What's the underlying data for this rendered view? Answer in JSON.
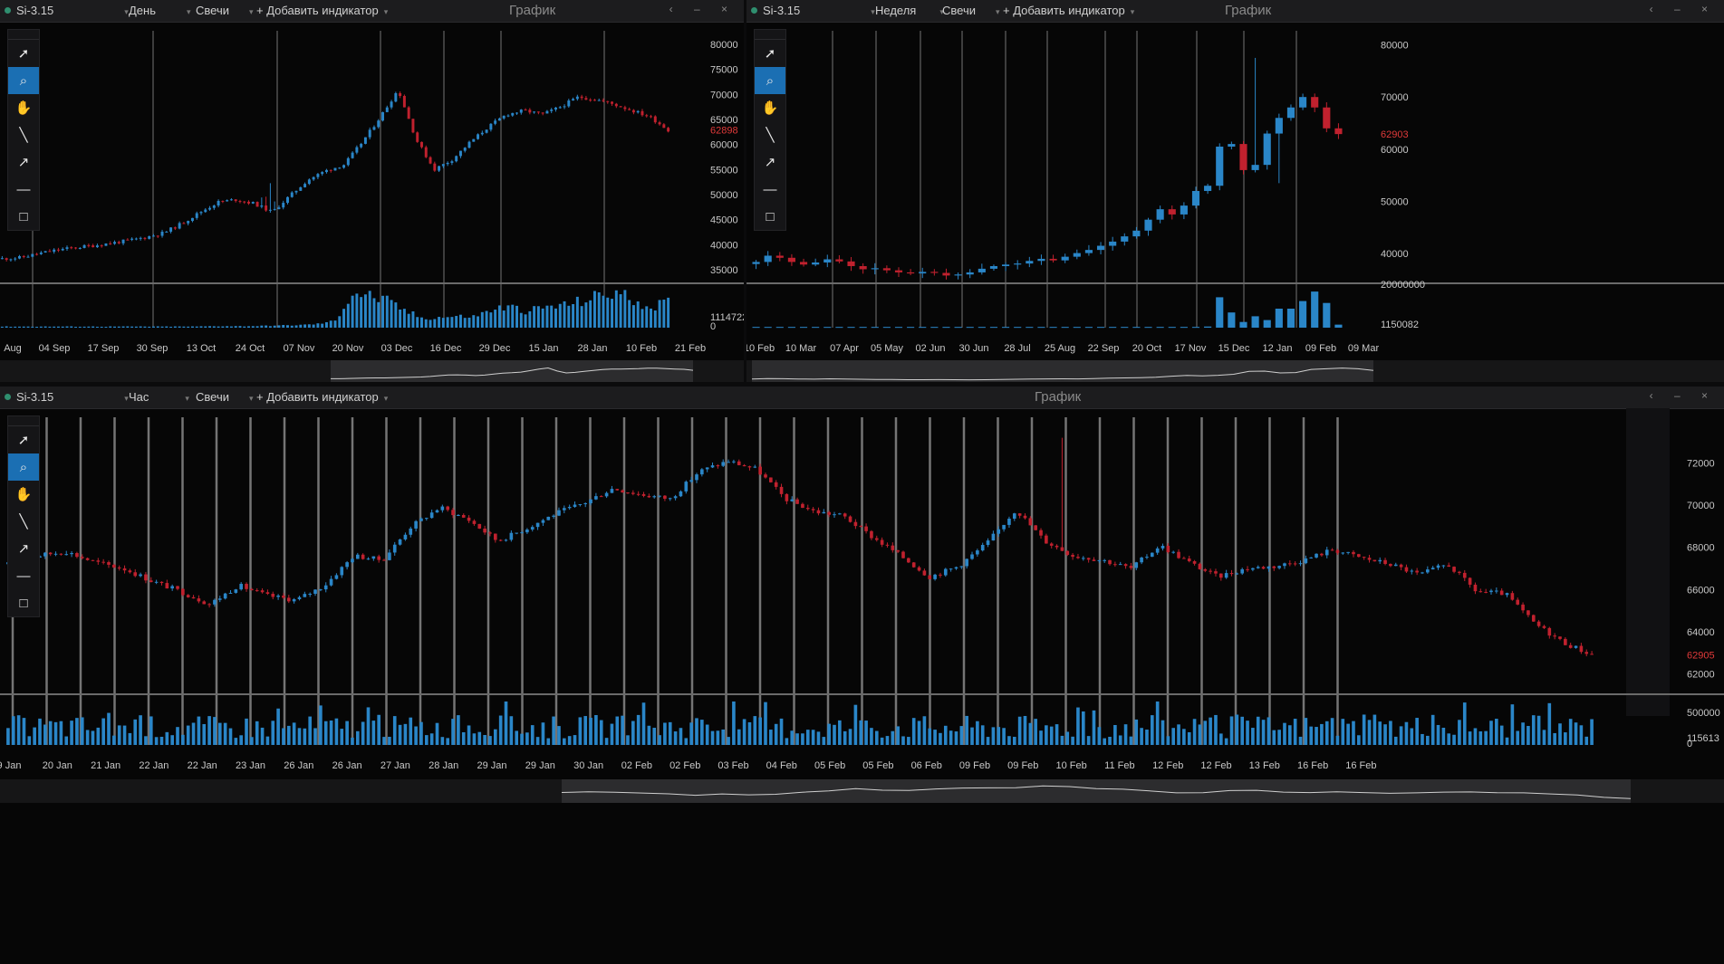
{
  "colors": {
    "up": "#2a86c8",
    "down": "#c0212e",
    "grid": "#9a9a9a",
    "axis_text": "#c8c8c8",
    "price_marker": "#e03a3a",
    "volume": "#2a86c8"
  },
  "toolbar": {
    "tools": [
      "cursor-icon",
      "zoom-icon",
      "hand-icon",
      "line-icon",
      "arrow-icon",
      "hline-icon",
      "rect-icon"
    ]
  },
  "panels": [
    {
      "symbol": "Si-3.15",
      "timeframe": "День",
      "chart_type": "Свечи",
      "add_indicator": "+ Добавить индикатор",
      "window_title": "График",
      "controls": "‹ – ×"
    },
    {
      "symbol": "Si-3.15",
      "timeframe": "Неделя",
      "chart_type": "Свечи",
      "add_indicator": "+ Добавить индикатор",
      "window_title": "График",
      "controls": "‹ – ×"
    },
    {
      "symbol": "Si-3.15",
      "timeframe": "Час",
      "chart_type": "Свечи",
      "add_indicator": "+ Добавить индикатор",
      "window_title": "График",
      "controls": "‹ – ×"
    }
  ],
  "chart_data": [
    {
      "type": "candlestick",
      "title": "Si-3.15 — День",
      "x_ticks": [
        "Aug",
        "04 Sep",
        "17 Sep",
        "30 Sep",
        "13 Oct",
        "24 Oct",
        "07 Nov",
        "20 Nov",
        "03 Dec",
        "16 Dec",
        "29 Dec",
        "15 Jan",
        "28 Jan",
        "10 Feb",
        "21 Feb"
      ],
      "ylim": [
        33000,
        82000
      ],
      "y_ticks": [
        35000,
        40000,
        45000,
        50000,
        55000,
        60000,
        65000,
        70000,
        75000,
        80000
      ],
      "last_price": 62898,
      "volume_max_label": 1114722,
      "volume_zero_label": 0,
      "close_path": [
        37200,
        37400,
        38200,
        38900,
        39400,
        39800,
        40300,
        40800,
        41500,
        42400,
        44300,
        46500,
        48500,
        49000,
        48200,
        46500,
        49800,
        53000,
        54800,
        56000,
        60500,
        65500,
        71000,
        61000,
        55000,
        57000,
        60500,
        63500,
        66000,
        66800,
        66000,
        67500,
        69500,
        69000,
        68000,
        66800,
        65500,
        62900
      ],
      "volume": [
        0.03,
        0.03,
        0.03,
        0.03,
        0.03,
        0.03,
        0.03,
        0.03,
        0.03,
        0.03,
        0.03,
        0.03,
        0.04,
        0.04,
        0.04,
        0.05,
        0.06,
        0.07,
        0.1,
        0.18,
        0.95,
        0.85,
        0.7,
        0.45,
        0.25,
        0.28,
        0.3,
        0.3,
        0.5,
        0.55,
        0.45,
        0.55,
        0.6,
        0.7,
        0.85,
        0.95,
        0.75,
        0.55,
        0.7
      ]
    },
    {
      "type": "candlestick",
      "title": "Si-3.15 — Неделя",
      "x_ticks": [
        "10 Feb",
        "10 Mar",
        "07 Apr",
        "05 May",
        "02 Jun",
        "30 Jun",
        "28 Jul",
        "25 Aug",
        "22 Sep",
        "20 Oct",
        "17 Nov",
        "15 Dec",
        "12 Jan",
        "09 Feb",
        "09 Mar"
      ],
      "ylim": [
        35000,
        82000
      ],
      "y_ticks": [
        40000,
        50000,
        60000,
        70000,
        80000
      ],
      "last_price": 62903,
      "volume_max_label": 20000000,
      "volume_min_label": 1150082,
      "weekly": [
        [
          38000,
          38400
        ],
        [
          38400,
          39600
        ],
        [
          39600,
          39200
        ],
        [
          39200,
          38400
        ],
        [
          38400,
          37900
        ],
        [
          37900,
          38300
        ],
        [
          38300,
          38900
        ],
        [
          38900,
          38500
        ],
        [
          38500,
          37600
        ],
        [
          37600,
          37000
        ],
        [
          37000,
          37200
        ],
        [
          37200,
          36800
        ],
        [
          36800,
          36400
        ],
        [
          36400,
          36200
        ],
        [
          36200,
          36500
        ],
        [
          36500,
          36300
        ],
        [
          36300,
          35800
        ],
        [
          35800,
          36000
        ],
        [
          36000,
          36400
        ],
        [
          36400,
          37100
        ],
        [
          37100,
          37600
        ],
        [
          37600,
          37900
        ],
        [
          37900,
          38100
        ],
        [
          38100,
          38600
        ],
        [
          38600,
          39000
        ],
        [
          39000,
          38700
        ],
        [
          38700,
          39400
        ],
        [
          39400,
          40100
        ],
        [
          40100,
          40700
        ],
        [
          40700,
          41500
        ],
        [
          41500,
          42300
        ],
        [
          42300,
          43300
        ],
        [
          43300,
          44400
        ],
        [
          44400,
          46500
        ],
        [
          46500,
          48500
        ],
        [
          48500,
          47500
        ],
        [
          47500,
          49200
        ],
        [
          49200,
          52000
        ],
        [
          52000,
          53000
        ],
        [
          53000,
          60500
        ],
        [
          60500,
          61000
        ],
        [
          61000,
          56000
        ],
        [
          56000,
          57000
        ],
        [
          57000,
          63000
        ],
        [
          63000,
          66000
        ],
        [
          66000,
          68000
        ],
        [
          68000,
          70000
        ],
        [
          70000,
          68000
        ],
        [
          68000,
          64000
        ],
        [
          64000,
          62900
        ]
      ],
      "volume": [
        0.02,
        0.02,
        0.02,
        0.02,
        0.02,
        0.02,
        0.02,
        0.02,
        0.02,
        0.02,
        0.02,
        0.02,
        0.02,
        0.02,
        0.02,
        0.02,
        0.02,
        0.02,
        0.02,
        0.02,
        0.02,
        0.02,
        0.02,
        0.02,
        0.02,
        0.02,
        0.02,
        0.02,
        0.02,
        0.02,
        0.02,
        0.02,
        0.02,
        0.02,
        0.02,
        0.02,
        0.02,
        0.02,
        0.03,
        0.8,
        0.4,
        0.15,
        0.3,
        0.2,
        0.5,
        0.5,
        0.7,
        0.95,
        0.65,
        0.08
      ]
    },
    {
      "type": "candlestick",
      "title": "Si-3.15 — Час",
      "x_ticks": [
        "9 Jan",
        "20 Jan",
        "21 Jan",
        "22 Jan",
        "22 Jan",
        "23 Jan",
        "26 Jan",
        "26 Jan",
        "27 Jan",
        "28 Jan",
        "29 Jan",
        "29 Jan",
        "30 Jan",
        "02 Feb",
        "02 Feb",
        "03 Feb",
        "04 Feb",
        "05 Feb",
        "05 Feb",
        "06 Feb",
        "09 Feb",
        "09 Feb",
        "10 Feb",
        "11 Feb",
        "12 Feb",
        "12 Feb",
        "13 Feb",
        "16 Feb",
        "16 Feb"
      ],
      "ylim": [
        61200,
        74000
      ],
      "y_ticks": [
        62000,
        64000,
        66000,
        68000,
        70000,
        72000
      ],
      "last_price": 62905,
      "volume_max_label": 500000,
      "volume_min_label": 115613,
      "volume_zero_label": 0,
      "close_path": [
        67200,
        67600,
        67800,
        67300,
        67000,
        66400,
        65900,
        65300,
        66200,
        65700,
        65500,
        66200,
        67600,
        67400,
        69000,
        69900,
        69300,
        68300,
        68900,
        69600,
        70100,
        70800,
        70500,
        70300,
        71600,
        72100,
        71700,
        70300,
        69700,
        69500,
        68500,
        67600,
        66600,
        67100,
        68200,
        69800,
        68300,
        67600,
        67400,
        67000,
        68100,
        67300,
        66600,
        67000,
        67100,
        67400,
        67900,
        67500,
        67200,
        66700,
        67200,
        65900,
        65800,
        64400,
        63500,
        62900
      ],
      "volume_seed": 17
    }
  ]
}
